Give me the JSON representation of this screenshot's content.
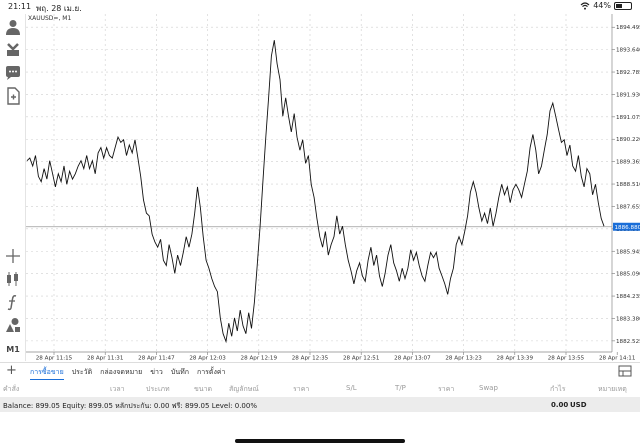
{
  "status": {
    "time": "21:11",
    "date": "พฤ. 28 เม.ย.",
    "battery": "44%",
    "battery_level": 0.44
  },
  "chart": {
    "symbol": "XAUUSD=, M1",
    "current_price": "1886.880",
    "line_color": "#111111",
    "price_tag_color": "#1a6ed8",
    "y_ticks": [
      "1894.495",
      "1893.640",
      "1892.785",
      "1891.930",
      "1891.075",
      "1890.220",
      "1889.365",
      "1888.510",
      "1887.655",
      "1886.800",
      "1885.945",
      "1885.090",
      "1884.235",
      "1883.380",
      "1882.525"
    ],
    "x_ticks": [
      "28 Apr 11:15",
      "28 Apr 11:31",
      "28 Apr 11:47",
      "28 Apr 12:03",
      "28 Apr 12:19",
      "28 Apr 12:35",
      "28 Apr 12:51",
      "28 Apr 13:07",
      "28 Apr 13:23",
      "28 Apr 13:39",
      "28 Apr 13:55",
      "28 Apr 14:11"
    ]
  },
  "chart_data": {
    "type": "line",
    "title": "XAUUSD=, M1",
    "xlabel": "",
    "ylabel": "",
    "ylim": [
      1882.1,
      1895.0
    ],
    "y_values": [
      1889.4,
      1889.5,
      1889.2,
      1889.6,
      1888.8,
      1888.6,
      1889.1,
      1888.7,
      1889.4,
      1888.9,
      1888.4,
      1888.9,
      1888.6,
      1889.2,
      1888.5,
      1889.0,
      1888.7,
      1888.9,
      1889.2,
      1889.4,
      1889.1,
      1889.6,
      1889.1,
      1889.4,
      1888.9,
      1889.7,
      1889.9,
      1889.5,
      1889.9,
      1889.6,
      1889.5,
      1889.9,
      1890.3,
      1890.1,
      1890.2,
      1889.6,
      1890.0,
      1889.7,
      1890.2,
      1889.5,
      1888.8,
      1887.9,
      1887.4,
      1887.3,
      1886.6,
      1886.3,
      1886.1,
      1886.4,
      1885.6,
      1885.4,
      1886.2,
      1885.7,
      1885.1,
      1885.8,
      1885.4,
      1885.9,
      1886.5,
      1886.1,
      1886.6,
      1887.4,
      1888.4,
      1887.6,
      1886.5,
      1885.6,
      1885.3,
      1884.9,
      1884.6,
      1884.4,
      1883.4,
      1882.8,
      1882.5,
      1883.2,
      1882.7,
      1883.4,
      1882.9,
      1883.7,
      1883.1,
      1882.8,
      1883.6,
      1883.0,
      1884.0,
      1885.4,
      1886.9,
      1888.6,
      1890.3,
      1891.8,
      1893.4,
      1894.0,
      1893.1,
      1892.5,
      1891.1,
      1891.8,
      1891.1,
      1890.5,
      1891.2,
      1890.3,
      1889.8,
      1890.2,
      1889.3,
      1889.6,
      1888.5,
      1888.0,
      1887.2,
      1886.5,
      1886.1,
      1886.7,
      1885.8,
      1886.2,
      1886.5,
      1887.3,
      1886.6,
      1886.9,
      1886.2,
      1885.6,
      1885.2,
      1884.7,
      1885.2,
      1885.5,
      1885.0,
      1884.8,
      1885.6,
      1886.1,
      1885.4,
      1885.8,
      1885.0,
      1884.6,
      1885.1,
      1885.8,
      1886.2,
      1885.5,
      1885.2,
      1884.8,
      1885.3,
      1884.9,
      1885.3,
      1886.0,
      1885.6,
      1885.9,
      1885.4,
      1885.0,
      1884.8,
      1885.4,
      1885.9,
      1885.7,
      1885.9,
      1885.3,
      1885.0,
      1884.7,
      1884.3,
      1884.9,
      1885.3,
      1886.2,
      1886.5,
      1886.2,
      1886.7,
      1887.3,
      1888.2,
      1888.6,
      1888.2,
      1887.6,
      1887.1,
      1887.4,
      1887.0,
      1887.6,
      1886.9,
      1887.4,
      1888.0,
      1888.5,
      1888.1,
      1888.4,
      1887.8,
      1888.3,
      1888.5,
      1888.3,
      1888.0,
      1888.5,
      1889.0,
      1889.9,
      1890.4,
      1889.8,
      1888.9,
      1889.2,
      1889.8,
      1890.4,
      1891.3,
      1891.6,
      1891.1,
      1890.6,
      1890.1,
      1890.2,
      1889.6,
      1890.0,
      1889.2,
      1889.0,
      1889.6,
      1888.8,
      1888.4,
      1889.1,
      1888.9,
      1888.1,
      1888.5,
      1887.8,
      1887.2,
      1886.9
    ]
  },
  "toolbar": {
    "icons": [
      "user-icon",
      "acquire-icon",
      "chat-icon",
      "document-icon",
      "crosshair-icon",
      "candles-icon",
      "function-icon",
      "objects-icon"
    ],
    "timeframe": "M1"
  },
  "tabs": {
    "items": [
      "การซื้อขาย",
      "ประวัติ",
      "กล่องจดหมาย",
      "ข่าว",
      "บันทึก",
      "การตั้งค่า"
    ],
    "active_index": 0
  },
  "columns": [
    "คำสั่ง",
    "เวลา",
    "ประเภท",
    "ขนาด",
    "สัญลักษณ์",
    "ราคา",
    "S/L",
    "T/P",
    "ราคา",
    "Swap",
    "กำไร",
    "หมายเหตุ"
  ],
  "balance": {
    "text": "Balance: 899.05 Equity: 899.05 หลักประกัน: 0.00 ฟรี: 899.05 Level: 0.00%",
    "profit": "0.00",
    "currency": "USD"
  }
}
